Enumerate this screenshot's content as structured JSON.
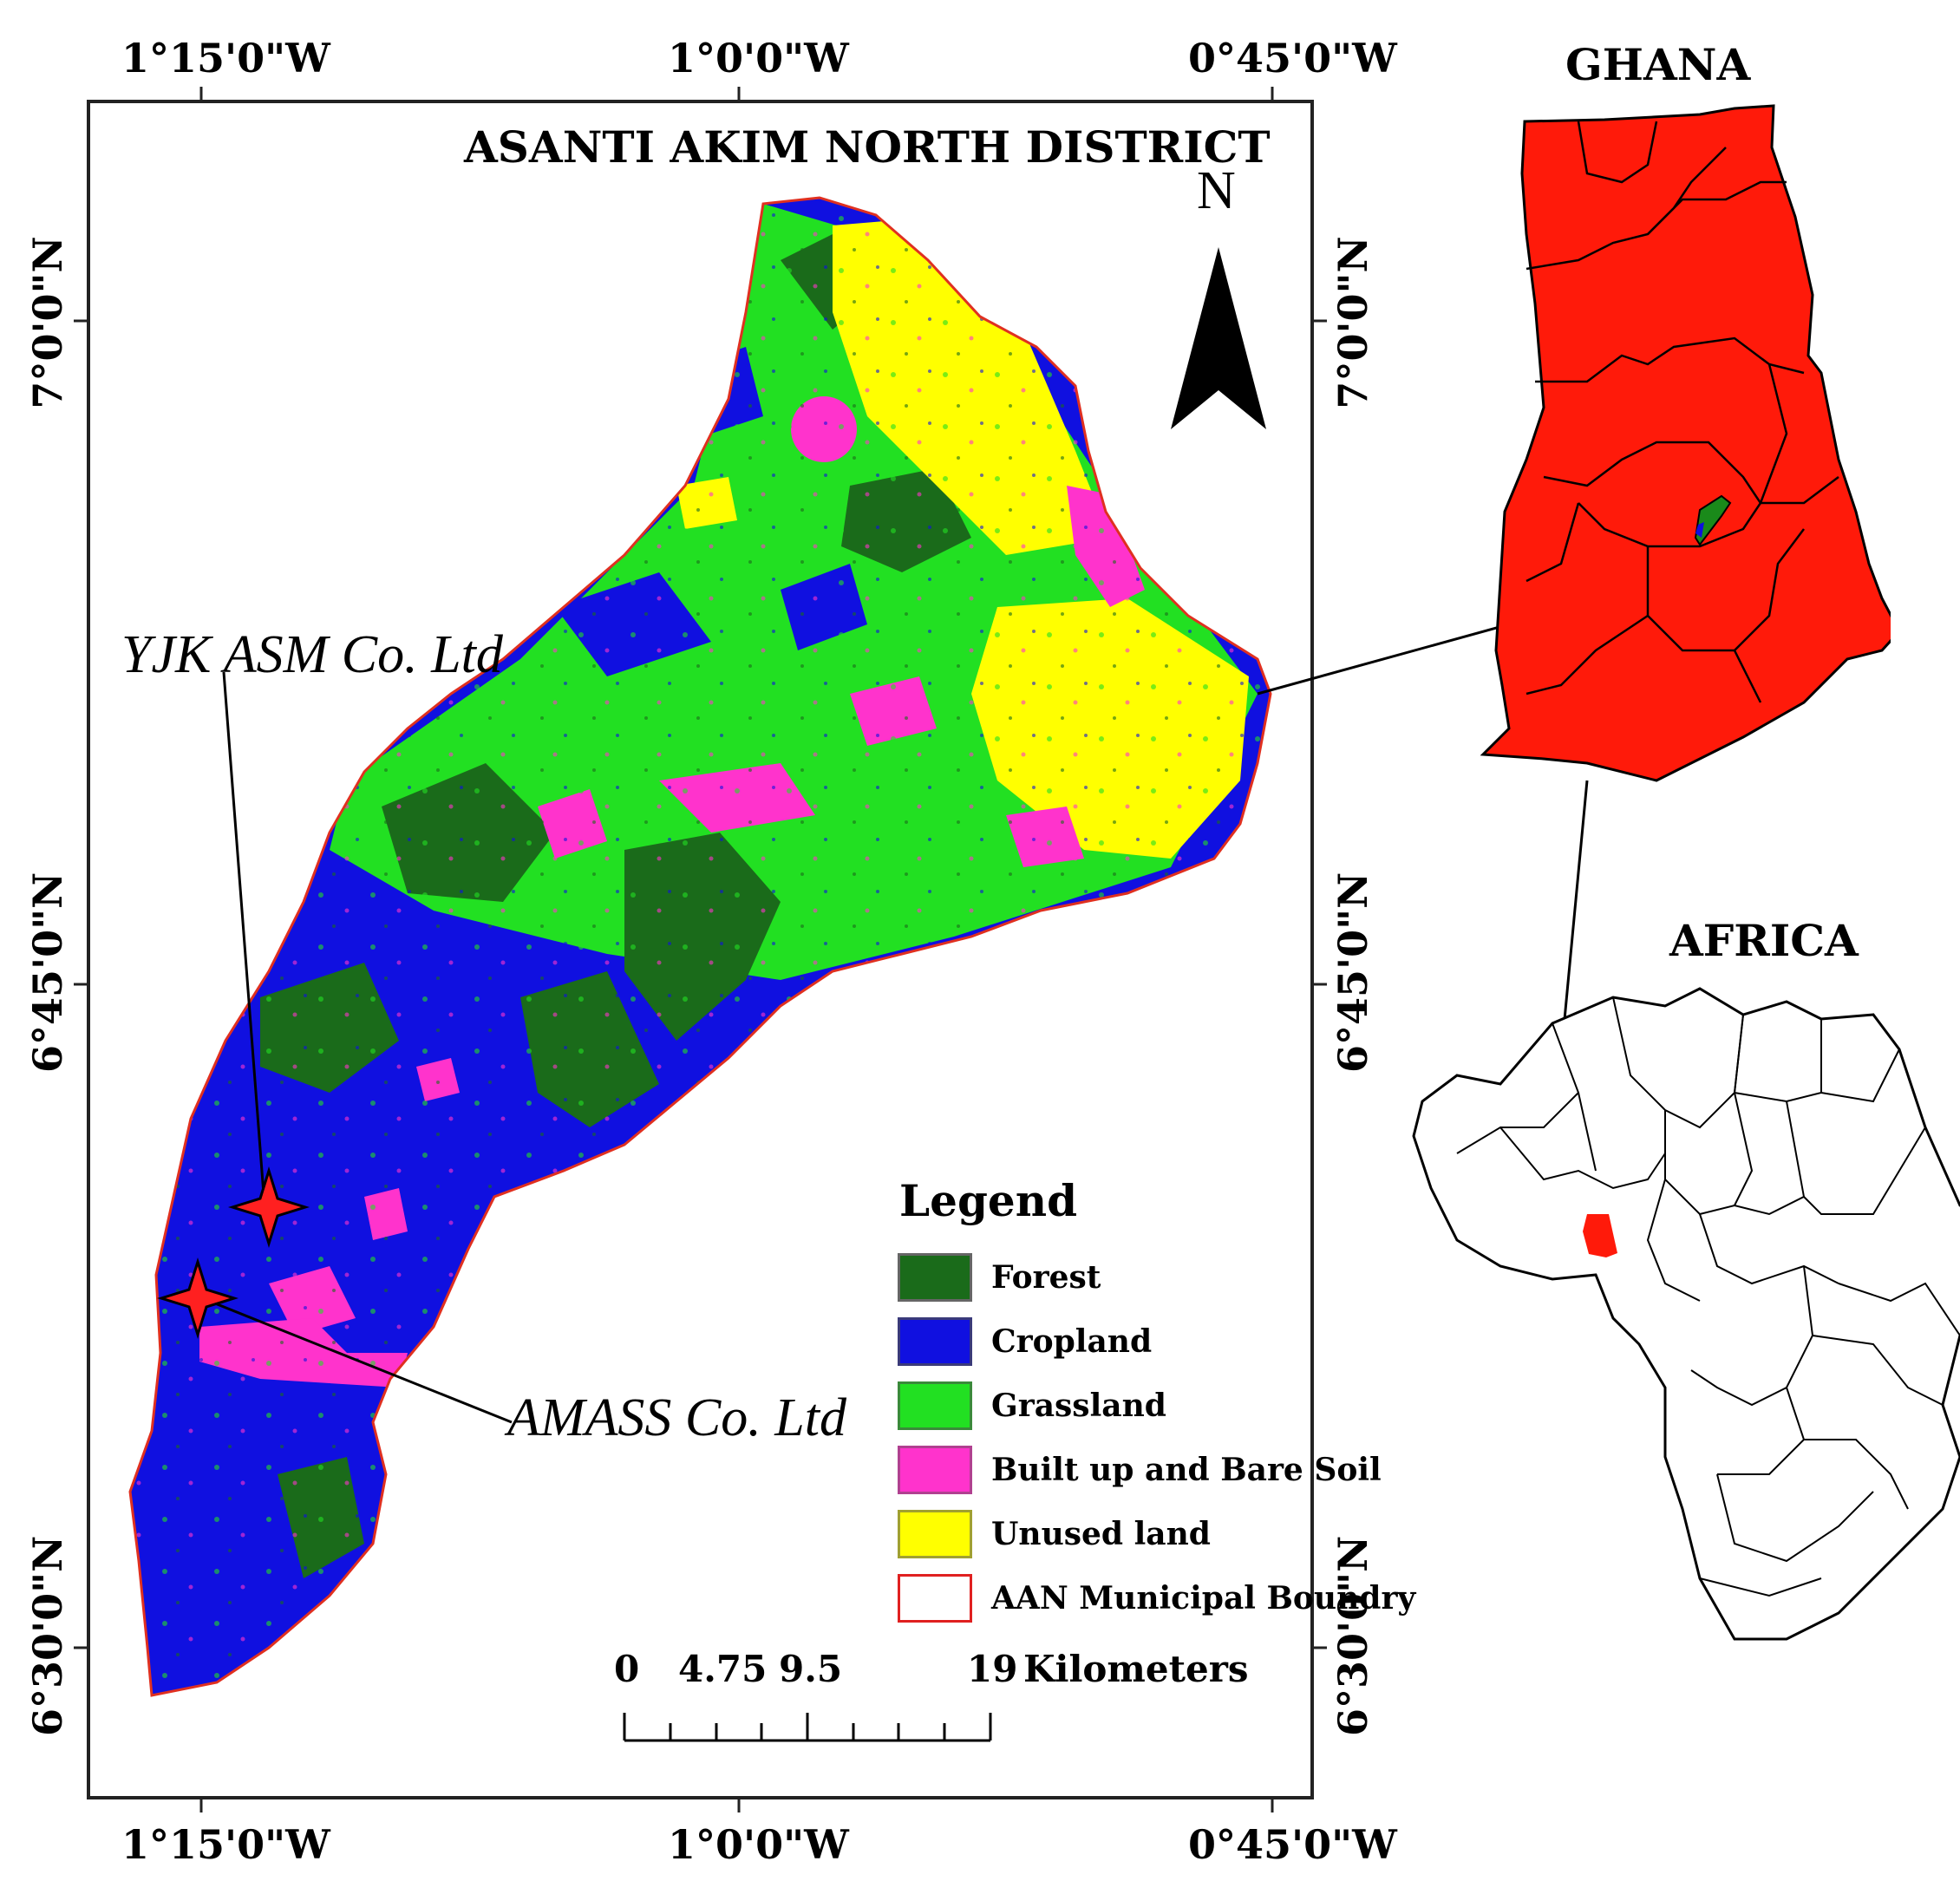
{
  "map": {
    "title": "ASANTI AKIM NORTH DISTRICT",
    "north_label": "N",
    "top_coords": [
      "1°15'0\"W",
      "1°0'0\"W",
      "0°45'0\"W"
    ],
    "bottom_coords": [
      "1°15'0\"W",
      "1°0'0\"W",
      "0°45'0\"W"
    ],
    "left_coords": [
      "7°0'0\"N",
      "6°45'0\"N",
      "6°30'0\"N"
    ],
    "right_coords": [
      "7°0'0\"N",
      "6°45'0\"N",
      "6°30'0\"N"
    ],
    "sites": {
      "yjk": "YJK ASM Co. Ltd",
      "amass": "AMASS Co. Ltd"
    }
  },
  "legend": {
    "title": "Legend",
    "items": [
      {
        "label": "Forest",
        "color": "#1a6b1a"
      },
      {
        "label": "Cropland",
        "color": "#1010e0"
      },
      {
        "label": "Grassland",
        "color": "#22e022"
      },
      {
        "label": "Built up and Bare Soil",
        "color": "#ff33cc"
      },
      {
        "label": "Unused land",
        "color": "#ffff00"
      },
      {
        "label": "AAN Municipal Boundry",
        "color": "#ffffff"
      }
    ]
  },
  "scalebar": {
    "ticks": [
      "0",
      "4.75",
      "9.5",
      "19"
    ],
    "unit": "Kilometers"
  },
  "insets": {
    "ghana_title": "GHANA",
    "africa_title": "AFRICA"
  },
  "colors": {
    "ghana_fill": "#ff1a0a",
    "boundary": "#e03020",
    "marker": "#ff2020"
  }
}
